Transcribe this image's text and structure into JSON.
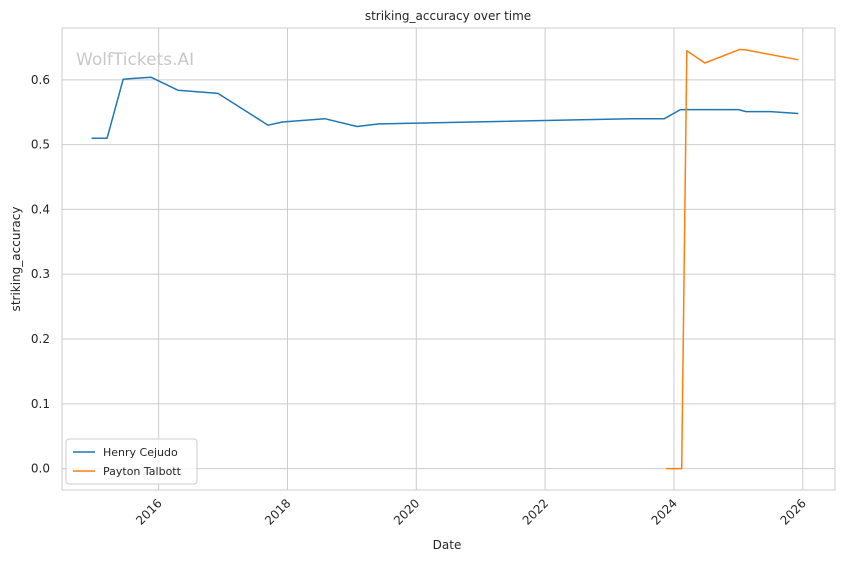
{
  "chart_data": {
    "type": "line",
    "title": "striking_accuracy over time",
    "xlabel": "Date",
    "ylabel": "striking_accuracy",
    "watermark": "WolfTickets.AI",
    "x_ticks": [
      {
        "value": 2016,
        "label": "2016"
      },
      {
        "value": 2018,
        "label": "2018"
      },
      {
        "value": 2020,
        "label": "2020"
      },
      {
        "value": 2022,
        "label": "2022"
      },
      {
        "value": 2024,
        "label": "2024"
      },
      {
        "value": 2026,
        "label": "2026"
      }
    ],
    "y_ticks": [
      {
        "value": 0.0,
        "label": "0.0"
      },
      {
        "value": 0.1,
        "label": "0.1"
      },
      {
        "value": 0.2,
        "label": "0.2"
      },
      {
        "value": 0.3,
        "label": "0.3"
      },
      {
        "value": 0.4,
        "label": "0.4"
      },
      {
        "value": 0.5,
        "label": "0.5"
      },
      {
        "value": 0.6,
        "label": "0.6"
      }
    ],
    "xlim": [
      2014.5,
      2026.5
    ],
    "ylim": [
      -0.033,
      0.68
    ],
    "grid": true,
    "legend_position": "lower-left",
    "series": [
      {
        "name": "Henry Cejudo",
        "color": "#1f77b4",
        "x": [
          2014.96,
          2015.2,
          2015.45,
          2015.88,
          2016.3,
          2016.92,
          2017.7,
          2017.92,
          2018.58,
          2019.08,
          2019.42,
          2023.33,
          2023.85,
          2024.1,
          2024.5,
          2025.0,
          2025.12,
          2025.5,
          2025.93
        ],
        "y": [
          0.51,
          0.51,
          0.601,
          0.604,
          0.584,
          0.579,
          0.53,
          0.535,
          0.54,
          0.528,
          0.532,
          0.54,
          0.54,
          0.554,
          0.554,
          0.554,
          0.551,
          0.551,
          0.548
        ]
      },
      {
        "name": "Payton Talbott",
        "color": "#ff7f0e",
        "x": [
          2023.88,
          2024.12,
          2024.2,
          2024.48,
          2025.02,
          2025.12,
          2025.93
        ],
        "y": [
          0.0,
          0.0,
          0.645,
          0.626,
          0.647,
          0.646,
          0.631
        ]
      }
    ]
  }
}
